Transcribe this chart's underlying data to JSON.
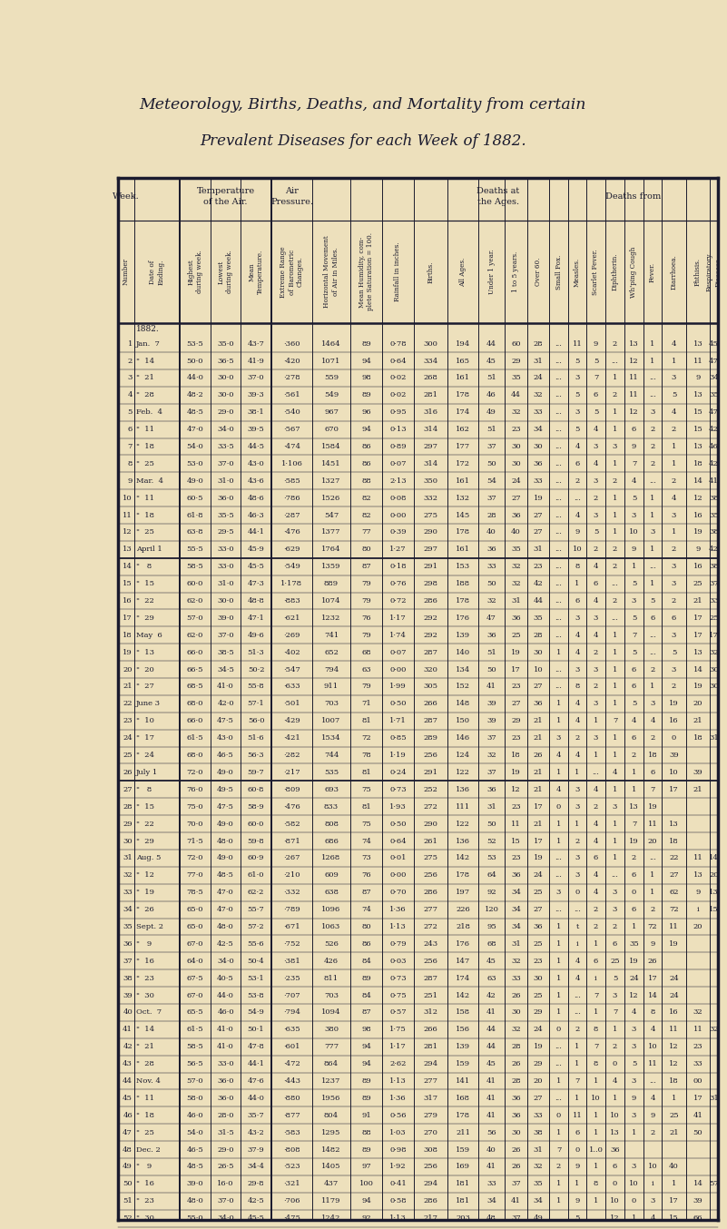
{
  "title1": "Meteorology, Births, Deaths, and Mortality from certain",
  "title2": "Prevalent Diseases for each Week of 1882.",
  "bg_color": "#ede0bc",
  "text_color": "#1a1a2e",
  "rows": [
    [
      "1",
      "Jan.  7",
      "53·5",
      "35·0",
      "43·7",
      "·360",
      "1464",
      "89",
      "0·78",
      "300",
      "194",
      "44",
      "60",
      "28",
      "...",
      "11",
      "9",
      "2",
      "13",
      "1",
      "4",
      "13",
      "45"
    ],
    [
      "2",
      "\"  14",
      "50·0",
      "36·5",
      "41·9",
      "·420",
      "1071",
      "94",
      "0·64",
      "334",
      "165",
      "45",
      "29",
      "31",
      "...",
      "5",
      "5",
      "...",
      "12",
      "1",
      "1",
      "11",
      "47"
    ],
    [
      "3",
      "\"  21",
      "44·0",
      "30·0",
      "37·0",
      "·278",
      "559",
      "98",
      "0·02",
      "268",
      "161",
      "51",
      "35",
      "24",
      "...",
      "3",
      "7",
      "1",
      "11",
      "...",
      "3",
      "9",
      "34"
    ],
    [
      "4",
      "\"  28",
      "48·2",
      "30·0",
      "39·3",
      "·561",
      "549",
      "89",
      "0·02",
      "281",
      "178",
      "46",
      "44",
      "32",
      "...",
      "5",
      "6",
      "2",
      "11",
      "...",
      "5",
      "13",
      "35"
    ],
    [
      "5",
      "Feb.  4",
      "48·5",
      "29·0",
      "38·1",
      "·540",
      "967",
      "96",
      "0·95",
      "316",
      "174",
      "49",
      "32",
      "33",
      "...",
      "3",
      "5",
      "1",
      "12",
      "3",
      "4",
      "15",
      "47"
    ],
    [
      "6",
      "\"  11",
      "47·0",
      "34·0",
      "39·5",
      "·567",
      "670",
      "94",
      "0·13",
      "314",
      "162",
      "51",
      "23",
      "34",
      "...",
      "5",
      "4",
      "1",
      "6",
      "2",
      "2",
      "15",
      "42"
    ],
    [
      "7",
      "\"  18",
      "54·0",
      "33·5",
      "44·5",
      "·474",
      "1584",
      "86",
      "0·89",
      "297",
      "177",
      "37",
      "30",
      "30",
      "...",
      "4",
      "3",
      "3",
      "9",
      "2",
      "1",
      "13",
      "46"
    ],
    [
      "8",
      "\"  25",
      "53·0",
      "37·0",
      "43·0",
      "1·106",
      "1451",
      "86",
      "0·07",
      "314",
      "172",
      "50",
      "30",
      "36",
      "...",
      "6",
      "4",
      "1",
      "7",
      "2",
      "1",
      "18",
      "42"
    ],
    [
      "9",
      "Mar.  4",
      "49·0",
      "31·0",
      "43·6",
      "·585",
      "1327",
      "88",
      "2·13",
      "350",
      "161",
      "54",
      "24",
      "33",
      "...",
      "2",
      "3",
      "2",
      "4",
      "...",
      "2",
      "14",
      "41"
    ],
    [
      "10",
      "\"  11",
      "60·5",
      "36·0",
      "48·6",
      "·786",
      "1526",
      "82",
      "0·08",
      "332",
      "132",
      "37",
      "27",
      "19",
      "...",
      "...",
      "2",
      "1",
      "5",
      "1",
      "4",
      "12",
      "38"
    ],
    [
      "11",
      "\"  18",
      "61·8",
      "35·5",
      "46·3",
      "·287",
      "547",
      "82",
      "0·00",
      "275",
      "145",
      "28",
      "36",
      "27",
      "...",
      "4",
      "3",
      "1",
      "3",
      "1",
      "3",
      "16",
      "35"
    ],
    [
      "12",
      "\"  25",
      "63·8",
      "29·5",
      "44·1",
      "·476",
      "1377",
      "77",
      "0·39",
      "290",
      "178",
      "40",
      "40",
      "27",
      "...",
      "9",
      "5",
      "1",
      "10",
      "3",
      "1",
      "19",
      "38"
    ],
    [
      "13",
      "April 1",
      "55·5",
      "33·0",
      "45·9",
      "·629",
      "1764",
      "80",
      "1·27",
      "297",
      "161",
      "36",
      "35",
      "31",
      "...",
      "10",
      "2",
      "2",
      "9",
      "1",
      "2",
      "9",
      "42"
    ],
    [
      "14",
      "\"   8",
      "58·5",
      "33·0",
      "45·5",
      "·549",
      "1359",
      "87",
      "0·18",
      "291",
      "153",
      "33",
      "32",
      "23",
      "...",
      "8",
      "4",
      "2",
      "1",
      "...",
      "3",
      "16",
      "38"
    ],
    [
      "15",
      "\"  15",
      "60·0",
      "31·0",
      "47·3",
      "1·178",
      "889",
      "79",
      "0·76",
      "298",
      "188",
      "50",
      "32",
      "42",
      "...",
      "1",
      "6",
      "...",
      "5",
      "1",
      "3",
      "25",
      "37"
    ],
    [
      "16",
      "\"  22",
      "62·0",
      "30·0",
      "48·8",
      "·883",
      "1074",
      "79",
      "0·72",
      "286",
      "178",
      "32",
      "31",
      "44",
      "...",
      "6",
      "4",
      "2",
      "3",
      "5",
      "2",
      "21",
      "33"
    ],
    [
      "17",
      "\"  29",
      "57·0",
      "39·0",
      "47·1",
      "·621",
      "1232",
      "76",
      "1·17",
      "292",
      "176",
      "47",
      "36",
      "35",
      "...",
      "3",
      "3",
      "...",
      "5",
      "6",
      "6",
      "17",
      "25"
    ],
    [
      "18",
      "May  6",
      "62·0",
      "37·0",
      "49·6",
      "·269",
      "741",
      "79",
      "1·74",
      "292",
      "139",
      "36",
      "25",
      "28",
      "...",
      "4",
      "4",
      "1",
      "7",
      "...",
      "3",
      "17",
      "17"
    ],
    [
      "19",
      "\"  13",
      "66·0",
      "38·5",
      "51·3",
      "·402",
      "652",
      "68",
      "0·07",
      "287",
      "140",
      "51",
      "19",
      "30",
      "1",
      "4",
      "2",
      "1",
      "5",
      "...",
      "5",
      "13",
      "32"
    ],
    [
      "20",
      "\"  20",
      "66·5",
      "34·5",
      "50·2",
      "·547",
      "794",
      "63",
      "0·00",
      "320",
      "134",
      "50",
      "17",
      "10",
      "...",
      "3",
      "3",
      "1",
      "6",
      "2",
      "3",
      "14",
      "30"
    ],
    [
      "21",
      "\"  27",
      "68·5",
      "41·0",
      "55·8",
      "·633",
      "911",
      "79",
      "1·99",
      "305",
      "152",
      "41",
      "23",
      "27",
      "...",
      "8",
      "2",
      "1",
      "6",
      "1",
      "2",
      "19",
      "30"
    ],
    [
      "22",
      "June 3",
      "68·0",
      "42·0",
      "57·1",
      "·501",
      "703",
      "71",
      "0·50",
      "266",
      "148",
      "39",
      "27",
      "36",
      "1",
      "4",
      "3",
      "1",
      "5",
      "3",
      "19",
      "20"
    ],
    [
      "23",
      "\"  10",
      "66·0",
      "47·5",
      "56·0",
      "·429",
      "1007",
      "81",
      "1·71",
      "287",
      "150",
      "39",
      "29",
      "21",
      "1",
      "4",
      "1",
      "7",
      "4",
      "4",
      "16",
      "21"
    ],
    [
      "24",
      "\"  17",
      "61·5",
      "43·0",
      "51·6",
      "·421",
      "1534",
      "72",
      "0·85",
      "289",
      "146",
      "37",
      "23",
      "21",
      "3",
      "2",
      "3",
      "1",
      "6",
      "2",
      "0",
      "18",
      "31"
    ],
    [
      "25",
      "\"  24",
      "68·0",
      "46·5",
      "56·3",
      "·282",
      "744",
      "78",
      "1·19",
      "256",
      "124",
      "32",
      "18",
      "26",
      "4",
      "4",
      "1",
      "1",
      "2",
      "18",
      "39"
    ],
    [
      "26",
      "July 1",
      "72·0",
      "49·0",
      "59·7",
      "·217",
      "535",
      "81",
      "0·24",
      "291",
      "122",
      "37",
      "19",
      "21",
      "1",
      "1",
      "...",
      "4",
      "1",
      "6",
      "10",
      "39"
    ],
    [
      "27",
      "\"   8",
      "76·0",
      "49·5",
      "60·8",
      "·809",
      "693",
      "75",
      "0·73",
      "252",
      "136",
      "36",
      "12",
      "21",
      "4",
      "3",
      "4",
      "1",
      "1",
      "7",
      "17",
      "21"
    ],
    [
      "28",
      "\"  15",
      "75·0",
      "47·5",
      "58·9",
      "·476",
      "833",
      "81",
      "1·93",
      "272",
      "111",
      "31",
      "23",
      "17",
      "0",
      "3",
      "2",
      "3",
      "13",
      "19"
    ],
    [
      "29",
      "\"  22",
      "70·0",
      "49·0",
      "60·0",
      "·582",
      "808",
      "75",
      "0·50",
      "290",
      "122",
      "50",
      "11",
      "21",
      "1",
      "1",
      "4",
      "1",
      "7",
      "11",
      "13"
    ],
    [
      "30",
      "\"  29",
      "71·5",
      "48·0",
      "59·8",
      "·871",
      "686",
      "74",
      "0·64",
      "261",
      "136",
      "52",
      "15",
      "17",
      "1",
      "2",
      "4",
      "1",
      "19",
      "20",
      "18"
    ],
    [
      "31",
      "Aug. 5",
      "72·0",
      "49·0",
      "60·9",
      "·267",
      "1268",
      "73",
      "0·01",
      "275",
      "142",
      "53",
      "23",
      "19",
      "...",
      "3",
      "6",
      "1",
      "2",
      "...",
      "22",
      "11",
      "14"
    ],
    [
      "32",
      "\"  12",
      "77·0",
      "48·5",
      "61·0",
      "·210",
      "609",
      "76",
      "0·00",
      "256",
      "178",
      "64",
      "36",
      "24",
      "...",
      "3",
      "4",
      "...",
      "6",
      "1",
      "27",
      "13",
      "20"
    ],
    [
      "33",
      "\"  19",
      "78·5",
      "47·0",
      "62·2",
      "·332",
      "638",
      "87",
      "0·70",
      "286",
      "197",
      "92",
      "34",
      "25",
      "3",
      "0",
      "4",
      "3",
      "0",
      "1",
      "62",
      "9",
      "13"
    ],
    [
      "34",
      "\"  26",
      "65·0",
      "47·0",
      "55·7",
      "·789",
      "1096",
      "74",
      "1·36",
      "277",
      "226",
      "120",
      "34",
      "27",
      "...",
      "...",
      "2",
      "3",
      "6",
      "2",
      "72",
      "i",
      "15"
    ],
    [
      "35",
      "Sept. 2",
      "65·0",
      "48·0",
      "57·2",
      "·671",
      "1063",
      "80",
      "1·13",
      "272",
      "218",
      "95",
      "34",
      "36",
      "1",
      "t",
      "2",
      "2",
      "1",
      "72",
      "11",
      "20"
    ],
    [
      "36",
      "\"   9",
      "67·0",
      "42·5",
      "55·6",
      "·752",
      "526",
      "86",
      "0·79",
      "243",
      "176",
      "68",
      "31",
      "25",
      "1",
      "i",
      "1",
      "6",
      "35",
      "9",
      "19"
    ],
    [
      "37",
      "\"  16",
      "64·0",
      "34·0",
      "50·4",
      "·381",
      "426",
      "84",
      "0·03",
      "256",
      "147",
      "45",
      "32",
      "23",
      "1",
      "4",
      "6",
      "25",
      "19",
      "26"
    ],
    [
      "38",
      "\"  23",
      "67·5",
      "40·5",
      "53·1",
      "·235",
      "811",
      "89",
      "0·73",
      "287",
      "174",
      "63",
      "33",
      "30",
      "1",
      "4",
      "i",
      "5",
      "24",
      "17",
      "24"
    ],
    [
      "39",
      "\"  30",
      "67·0",
      "44·0",
      "53·8",
      "·707",
      "703",
      "84",
      "0·75",
      "251",
      "142",
      "42",
      "26",
      "25",
      "1",
      "...",
      "7",
      "3",
      "12",
      "14",
      "24"
    ],
    [
      "40",
      "Oct.  7",
      "65·5",
      "46·0",
      "54·9",
      "·794",
      "1094",
      "87",
      "0·57",
      "312",
      "158",
      "41",
      "30",
      "29",
      "1",
      "...",
      "1",
      "7",
      "4",
      "8",
      "16",
      "32"
    ],
    [
      "41",
      "\"  14",
      "61·5",
      "41·0",
      "50·1",
      "·635",
      "380",
      "98",
      "1·75",
      "266",
      "156",
      "44",
      "32",
      "24",
      "0",
      "2",
      "8",
      "1",
      "3",
      "4",
      "11",
      "11",
      "32"
    ],
    [
      "42",
      "\"  21",
      "58·5",
      "41·0",
      "47·8",
      "·601",
      "777",
      "94",
      "1·17",
      "281",
      "139",
      "44",
      "28",
      "19",
      "...",
      "1",
      "7",
      "2",
      "3",
      "10",
      "12",
      "23"
    ],
    [
      "43",
      "\"  28",
      "56·5",
      "33·0",
      "44·1",
      "·472",
      "864",
      "94",
      "2·62",
      "294",
      "159",
      "45",
      "26",
      "29",
      "...",
      "1",
      "8",
      "0",
      "5",
      "11",
      "12",
      "33"
    ],
    [
      "44",
      "Nov. 4",
      "57·0",
      "36·0",
      "47·6",
      "·443",
      "1237",
      "89",
      "1·13",
      "277",
      "141",
      "41",
      "28",
      "20",
      "1",
      "7",
      "1",
      "4",
      "3",
      "...",
      "18",
      "00"
    ],
    [
      "45",
      "\"  11",
      "58·0",
      "36·0",
      "44·0",
      "·880",
      "1956",
      "89",
      "1·36",
      "317",
      "168",
      "41",
      "36",
      "27",
      "...",
      "1",
      "10",
      "1",
      "9",
      "4",
      "1",
      "17",
      "31"
    ],
    [
      "46",
      "\"  18",
      "46·0",
      "28·0",
      "35·7",
      "·877",
      "804",
      "91",
      "0·56",
      "279",
      "178",
      "41",
      "36",
      "33",
      "0",
      "11",
      "1",
      "10",
      "3",
      "9",
      "25",
      "41"
    ],
    [
      "47",
      "\"  25",
      "54·0",
      "31·5",
      "43·2",
      "·583",
      "1295",
      "88",
      "1·03",
      "270",
      "211",
      "56",
      "30",
      "38",
      "1",
      "6",
      "1",
      "13",
      "1",
      "2",
      "21",
      "50"
    ],
    [
      "48",
      "Dec. 2",
      "46·5",
      "29·0",
      "37·9",
      "·808",
      "1482",
      "89",
      "0·98",
      "308",
      "159",
      "40",
      "26",
      "31",
      "7",
      "0",
      "1..0",
      "36"
    ],
    [
      "49",
      "\"   9",
      "48·5",
      "26·5",
      "34·4",
      "·523",
      "1405",
      "97",
      "1·92",
      "256",
      "169",
      "41",
      "26",
      "32",
      "2",
      "9",
      "1",
      "6",
      "3",
      "10",
      "40"
    ],
    [
      "50",
      "\"  16",
      "39·0",
      "16·0",
      "29·8",
      "·321",
      "437",
      "100",
      "0·41",
      "294",
      "181",
      "33",
      "37",
      "35",
      "1",
      "1",
      "8",
      "0",
      "10",
      "i",
      "1",
      "14",
      "57"
    ],
    [
      "51",
      "\"  23",
      "48·0",
      "37·0",
      "42·5",
      "·706",
      "1179",
      "94",
      "0·58",
      "286",
      "181",
      "34",
      "41",
      "34",
      "1",
      "9",
      "1",
      "10",
      "0",
      "3",
      "17",
      "39"
    ],
    [
      "52",
      "\"  30",
      "55·0",
      "34·0",
      "45·5",
      "·475",
      "1242",
      "92",
      "1·13",
      "217",
      "203",
      "48",
      "37",
      "49",
      "...",
      "5",
      "...",
      "12",
      "1",
      "4",
      "15",
      "66"
    ]
  ]
}
